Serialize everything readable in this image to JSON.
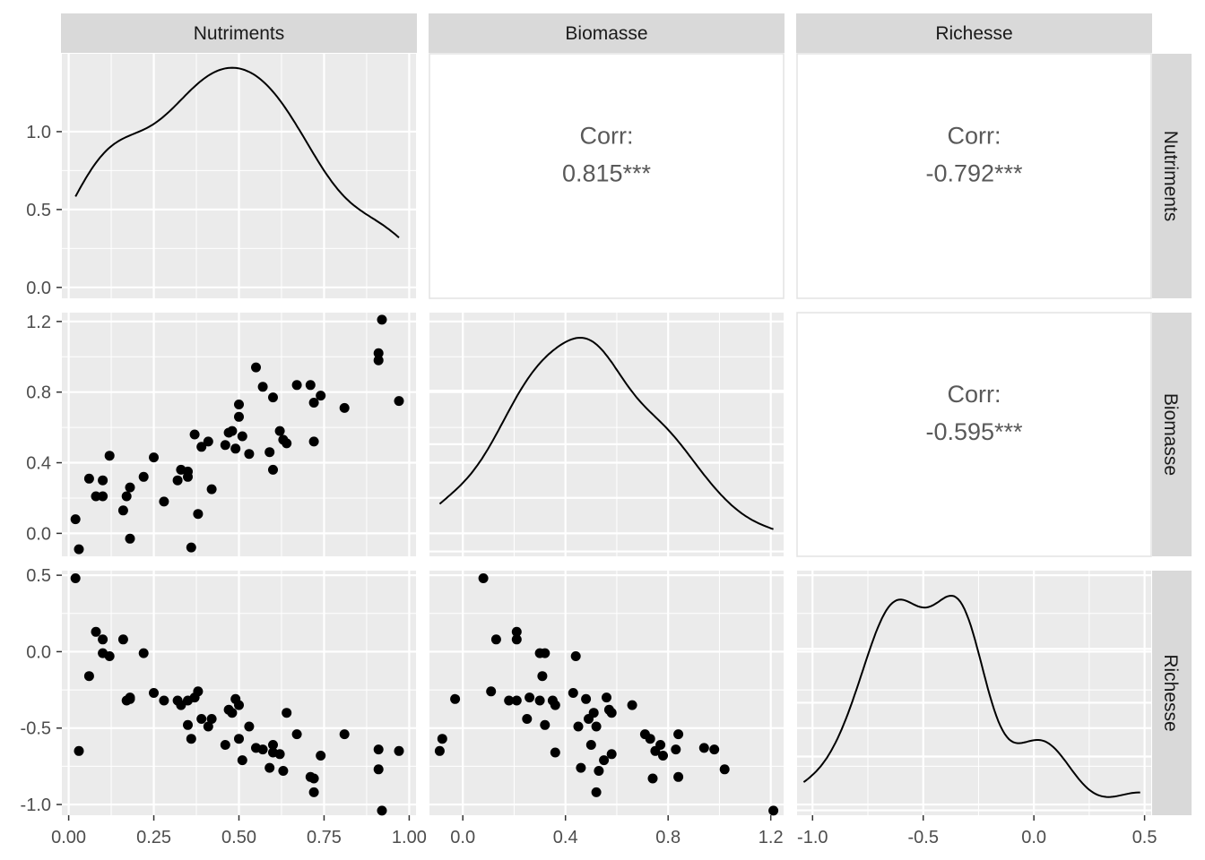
{
  "chart_data": {
    "type": "scatter-matrix",
    "variables": [
      "Nutriments",
      "Biomasse",
      "Richesse"
    ],
    "axes": {
      "Nutriments": {
        "lim": [
          -0.02,
          1.02
        ],
        "ticks": [
          0.0,
          0.25,
          0.5,
          0.75,
          1.0
        ],
        "tick_labels": [
          "0.00",
          "0.25",
          "0.50",
          "0.75",
          "1.00"
        ]
      },
      "Biomasse": {
        "lim": [
          -0.13,
          1.25
        ],
        "ticks": [
          0.0,
          0.4,
          0.8,
          1.2
        ],
        "tick_labels": [
          "0.0",
          "0.4",
          "0.8",
          "1.2"
        ]
      },
      "Richesse": {
        "lim": [
          -1.07,
          0.53
        ],
        "ticks": [
          -1.0,
          -0.5,
          0.0,
          0.5
        ],
        "tick_labels": [
          "-1.0",
          "-0.5",
          "0.0",
          "0.5"
        ]
      }
    },
    "density_axis": {
      "lim": [
        -0.07,
        1.5
      ],
      "ticks": [
        0.0,
        0.5,
        1.0
      ],
      "tick_labels": [
        "0.0",
        "0.5",
        "1.0"
      ]
    },
    "correlations": [
      {
        "x": "Nutriments",
        "y": "Biomasse",
        "label": "Corr:",
        "value": "0.815***"
      },
      {
        "x": "Nutriments",
        "y": "Richesse",
        "label": "Corr:",
        "value": "-0.792***"
      },
      {
        "x": "Biomasse",
        "y": "Richesse",
        "label": "Corr:",
        "value": "-0.595***"
      }
    ],
    "observations": [
      {
        "n": 0.02,
        "b": 0.08,
        "r": 0.48
      },
      {
        "n": 0.03,
        "b": -0.09,
        "r": -0.65
      },
      {
        "n": 0.06,
        "b": 0.31,
        "r": -0.16
      },
      {
        "n": 0.08,
        "b": 0.21,
        "r": 0.13
      },
      {
        "n": 0.1,
        "b": 0.21,
        "r": 0.08
      },
      {
        "n": 0.1,
        "b": 0.3,
        "r": -0.01
      },
      {
        "n": 0.12,
        "b": 0.44,
        "r": -0.03
      },
      {
        "n": 0.16,
        "b": 0.13,
        "r": 0.08
      },
      {
        "n": 0.17,
        "b": 0.21,
        "r": -0.32
      },
      {
        "n": 0.18,
        "b": 0.26,
        "r": -0.3
      },
      {
        "n": 0.18,
        "b": -0.03,
        "r": -0.31
      },
      {
        "n": 0.22,
        "b": 0.32,
        "r": -0.01
      },
      {
        "n": 0.25,
        "b": 0.43,
        "r": -0.27
      },
      {
        "n": 0.28,
        "b": 0.18,
        "r": -0.32
      },
      {
        "n": 0.32,
        "b": 0.3,
        "r": -0.32
      },
      {
        "n": 0.33,
        "b": 0.36,
        "r": -0.35
      },
      {
        "n": 0.35,
        "b": 0.32,
        "r": -0.48
      },
      {
        "n": 0.35,
        "b": 0.35,
        "r": -0.32
      },
      {
        "n": 0.36,
        "b": -0.08,
        "r": -0.57
      },
      {
        "n": 0.37,
        "b": 0.56,
        "r": -0.3
      },
      {
        "n": 0.38,
        "b": 0.11,
        "r": -0.26
      },
      {
        "n": 0.39,
        "b": 0.49,
        "r": -0.44
      },
      {
        "n": 0.41,
        "b": 0.52,
        "r": -0.49
      },
      {
        "n": 0.42,
        "b": 0.25,
        "r": -0.44
      },
      {
        "n": 0.46,
        "b": 0.5,
        "r": -0.61
      },
      {
        "n": 0.47,
        "b": 0.57,
        "r": -0.38
      },
      {
        "n": 0.48,
        "b": 0.58,
        "r": -0.4
      },
      {
        "n": 0.49,
        "b": 0.48,
        "r": -0.31
      },
      {
        "n": 0.5,
        "b": 0.66,
        "r": -0.35
      },
      {
        "n": 0.5,
        "b": 0.73,
        "r": -0.57
      },
      {
        "n": 0.51,
        "b": 0.55,
        "r": -0.71
      },
      {
        "n": 0.53,
        "b": 0.45,
        "r": -0.49
      },
      {
        "n": 0.55,
        "b": 0.94,
        "r": -0.63
      },
      {
        "n": 0.57,
        "b": 0.83,
        "r": -0.64
      },
      {
        "n": 0.59,
        "b": 0.46,
        "r": -0.76
      },
      {
        "n": 0.6,
        "b": 0.77,
        "r": -0.61
      },
      {
        "n": 0.6,
        "b": 0.36,
        "r": -0.66
      },
      {
        "n": 0.62,
        "b": 0.58,
        "r": -0.67
      },
      {
        "n": 0.63,
        "b": 0.53,
        "r": -0.78
      },
      {
        "n": 0.64,
        "b": 0.51,
        "r": -0.4
      },
      {
        "n": 0.67,
        "b": 0.84,
        "r": -0.54
      },
      {
        "n": 0.71,
        "b": 0.84,
        "r": -0.82
      },
      {
        "n": 0.72,
        "b": 0.52,
        "r": -0.92
      },
      {
        "n": 0.72,
        "b": 0.74,
        "r": -0.83
      },
      {
        "n": 0.74,
        "b": 0.78,
        "r": -0.68
      },
      {
        "n": 0.81,
        "b": 0.71,
        "r": -0.54
      },
      {
        "n": 0.91,
        "b": 0.98,
        "r": -0.64
      },
      {
        "n": 0.91,
        "b": 1.02,
        "r": -0.77
      },
      {
        "n": 0.92,
        "b": 1.21,
        "r": -1.04
      },
      {
        "n": 0.97,
        "b": 0.75,
        "r": -0.65
      }
    ]
  }
}
